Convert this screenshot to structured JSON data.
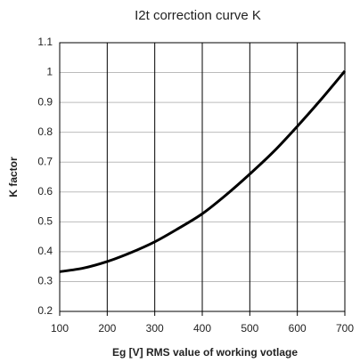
{
  "chart_data": {
    "type": "line",
    "title": "I2t correction curve K",
    "xlabel": "Eg [V] RMS value of working votlage",
    "ylabel": "K factor",
    "x": [
      100,
      150,
      200,
      250,
      300,
      350,
      400,
      450,
      500,
      550,
      600,
      650,
      700
    ],
    "series": [
      {
        "name": "K",
        "color": "#000000",
        "values": [
          0.333,
          0.345,
          0.367,
          0.397,
          0.433,
          0.478,
          0.527,
          0.59,
          0.66,
          0.735,
          0.82,
          0.91,
          1.005
        ]
      }
    ],
    "xlim": [
      100,
      700
    ],
    "xticks": [
      100,
      200,
      300,
      400,
      500,
      600,
      700
    ],
    "ylim": [
      0.2,
      1.1
    ],
    "yticks": [
      0.2,
      0.3,
      0.4,
      0.5,
      0.6,
      0.7,
      0.8,
      0.9,
      1,
      1.1
    ],
    "grid": true
  }
}
